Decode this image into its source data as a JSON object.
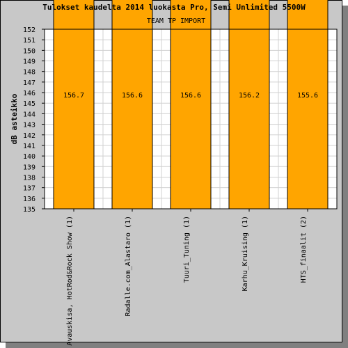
{
  "chart_data": {
    "type": "bar",
    "title": "Tulokset kaudelta 2014 luokasta Pro, Semi Unlimited 5500W",
    "subtitle": "TEAM TP IMPORT",
    "ylabel": "dB asteikko",
    "xlabel": "",
    "ylim": [
      135,
      152
    ],
    "grid": true,
    "yticks": [
      "135",
      "136",
      "137",
      "138",
      "139",
      "140",
      "141",
      "142",
      "143",
      "144",
      "145",
      "146",
      "147",
      "148",
      "149",
      "150",
      "151",
      "152"
    ],
    "categories": [
      "Avauskisa, HotRod&Rock Show (1)",
      "Radalle.com_Alastaro (1)",
      "Tuuri_Tuning (1)",
      "Karhu_Kruising (1)",
      "HTS_finaalit (2)"
    ],
    "values": [
      156.7,
      156.6,
      156.6,
      156.2,
      155.6
    ],
    "value_labels": [
      "156.7",
      "156.6",
      "156.6",
      "156.2",
      "155.6"
    ],
    "bar_color": "#ffa500"
  }
}
